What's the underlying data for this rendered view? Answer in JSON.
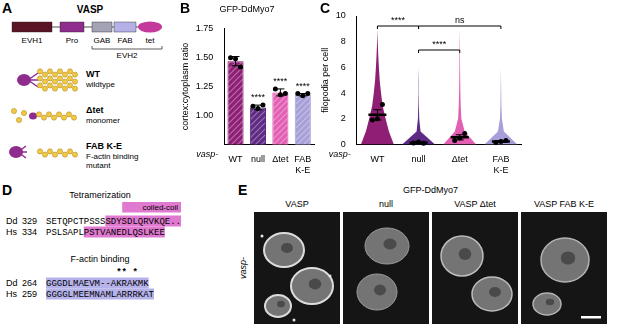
{
  "diagram": {
    "letter": "A",
    "title": "VASP",
    "domains": [
      {
        "label": "EVH1",
        "color": "#5a1525"
      },
      {
        "label": "Pro",
        "color": "#8f2d8f"
      },
      {
        "label": "GAB",
        "color": "#a3a3b5"
      },
      {
        "label": "FAB",
        "color": "#b5b1e6"
      },
      {
        "label": "tet",
        "color": "#c43a9c"
      }
    ],
    "group": {
      "label": "EVH2",
      "domains": [
        "GAB",
        "FAB",
        "tet"
      ]
    },
    "variants": [
      {
        "name": "WT",
        "description": "wildtype"
      },
      {
        "name": "Δtet",
        "description": "monomer"
      },
      {
        "name": "FAB K-E",
        "description": "F-actin binding mutant"
      }
    ]
  },
  "chart_data": [
    {
      "letter": "B",
      "type": "bar",
      "title": "GFP-DdMyo7",
      "y_label": "cortex:cytoplasm ratio",
      "x_label": "vasp-",
      "categories": [
        "WT",
        "null",
        "Δtet",
        "FAB K-E"
      ],
      "values": [
        1.47,
        1.07,
        1.2,
        1.18
      ],
      "errors": [
        0.04,
        0.02,
        0.03,
        0.01
      ],
      "points": [
        [
          1.5,
          1.49,
          1.42
        ],
        [
          1.08,
          1.06,
          1.09
        ],
        [
          1.23,
          1.18,
          1.19
        ],
        [
          1.19,
          1.17,
          1.19
        ]
      ],
      "significance": [
        null,
        "****",
        "****",
        "****"
      ],
      "colors": [
        "#8e1f74",
        "#5e2a84",
        "#e35fb4",
        "#a79fd8"
      ],
      "ylim": [
        0.75,
        1.75
      ],
      "yticks": [
        {
          "value": 1,
          "label": "1.00"
        },
        1.25,
        {
          "value": 1.5,
          "label": "1.50"
        },
        1.75
      ]
    },
    {
      "letter": "C",
      "type": "violin",
      "y_label": "filopodia per cell",
      "x_label": "vasp-",
      "categories": [
        "WT",
        "null",
        "Δtet",
        "FAB K-E"
      ],
      "colors": [
        "#8e1f74",
        "#5e2a84",
        "#e35fb4",
        "#a79fd8"
      ],
      "violin": {
        "y": [
          0,
          1,
          2,
          3,
          4,
          5,
          6,
          7,
          8,
          9,
          10
        ],
        "density": [
          [
            1,
            0.7,
            0.5,
            0.32,
            0.22,
            0.14,
            0.09,
            0.05,
            0.02,
            0,
            0
          ],
          [
            1,
            0.12,
            0.04,
            0.02,
            0.01,
            0.01,
            0,
            0,
            0,
            0,
            0
          ],
          [
            1,
            0.3,
            0.1,
            0.06,
            0.04,
            0.03,
            0.02,
            0.015,
            0.01,
            0,
            0
          ],
          [
            1,
            0.18,
            0.06,
            0.03,
            0.02,
            0.01,
            0,
            0,
            0,
            0,
            0
          ]
        ]
      },
      "means": [
        2.3,
        0.12,
        0.55,
        0.22
      ],
      "errors": [
        0.4,
        0.05,
        0.2,
        0.06
      ],
      "points": [
        [
          1.9,
          2.0,
          3.1
        ],
        [
          0.1,
          0.18,
          0.08
        ],
        [
          0.3,
          0.5,
          0.85
        ],
        [
          0.15,
          0.22,
          0.3
        ]
      ],
      "comparisons": [
        {
          "from": "WT",
          "to": "null",
          "label": "****"
        },
        {
          "from": "null",
          "to": "FAB K-E",
          "label": "ns"
        },
        {
          "from": "null",
          "to": "Δtet",
          "label": "****"
        }
      ],
      "ylim": [
        0,
        10
      ],
      "yticks": [
        0,
        2,
        4,
        6,
        8,
        10
      ]
    }
  ],
  "alignment": {
    "letter": "D",
    "sections": [
      {
        "title": "Tetramerization",
        "domain_label": "coiled-coil",
        "color": "#e07ad0",
        "rows": [
          {
            "species": "Dd",
            "start": 329,
            "plain": "SETQPCTPSSS",
            "highlight": "SDYSDLQRVKQE.."
          },
          {
            "species": "Hs",
            "start": 334,
            "plain": "PSLSAPL",
            "highlight": "PSTVANEDLQSLKEE"
          }
        ]
      },
      {
        "title": "F-actin binding",
        "marks": "** *",
        "color": "#b6b2ea",
        "rows": [
          {
            "species": "Dd",
            "start": 264,
            "highlight": "GGGDLMAEVM--AKRAKMK"
          },
          {
            "species": "Hs",
            "start": 259,
            "highlight": "GGGGLMEEMNAMLARRRKAT"
          }
        ]
      }
    ]
  },
  "images": {
    "letter": "E",
    "title": "GFP-DdMyo7",
    "row_label": "vasp-",
    "columns": [
      "VASP",
      "null",
      "VASP Δtet",
      "VASP FAB K-E"
    ]
  }
}
